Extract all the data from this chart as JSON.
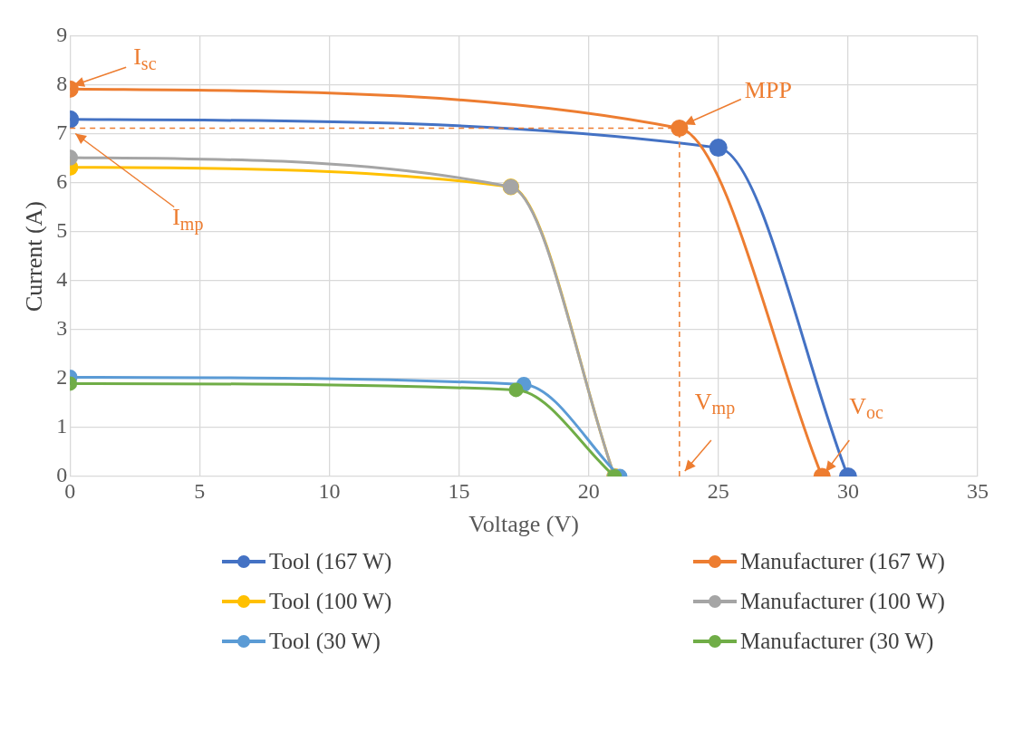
{
  "chart_data": {
    "type": "line",
    "xlabel": "Voltage (V)",
    "ylabel": "Current (A)",
    "xlim": [
      0,
      35
    ],
    "xticks": [
      0,
      5,
      10,
      15,
      20,
      25,
      30,
      35
    ],
    "ylim": [
      0,
      9
    ],
    "yticks": [
      0,
      1,
      2,
      3,
      4,
      5,
      6,
      7,
      8,
      9
    ],
    "grid": true,
    "legend": "bottom",
    "marker": "circle",
    "series": [
      {
        "name": "Tool (167 W)",
        "color": "#4472c4",
        "x": [
          0,
          25,
          30
        ],
        "values": [
          7.3,
          6.72,
          0
        ]
      },
      {
        "name": "Manufacturer (167 W)",
        "color": "#ed7d31",
        "x": [
          0,
          23.5,
          29
        ],
        "values": [
          7.92,
          7.12,
          0
        ]
      },
      {
        "name": "Tool (100 W)",
        "color": "#ffc000",
        "x": [
          0,
          17,
          21
        ],
        "values": [
          6.32,
          5.92,
          0
        ]
      },
      {
        "name": "Manufacturer (100 W)",
        "color": "#a5a5a5",
        "x": [
          0,
          17,
          21
        ],
        "values": [
          6.52,
          5.92,
          0
        ]
      },
      {
        "name": "Tool (30 W)",
        "color": "#5b9bd5",
        "x": [
          0,
          17.5,
          21.2
        ],
        "values": [
          2.03,
          1.88,
          0
        ]
      },
      {
        "name": "Manufacturer (30 W)",
        "color": "#70ad47",
        "x": [
          0,
          17.2,
          21
        ],
        "values": [
          1.9,
          1.77,
          0
        ]
      },
      {
        "color": "#ed7d31",
        "x": [
          0,
          23.5
        ],
        "values": [
          7.12,
          7.12
        ],
        "line_style": "dashed",
        "marker": "none"
      },
      {
        "color": "#ed7d31",
        "x": [
          23.5,
          23.5
        ],
        "values": [
          0,
          7.12
        ],
        "line_style": "dashed",
        "marker": "none"
      }
    ],
    "annotations": [
      {
        "text": "I$_{sc}$",
        "x": 0,
        "y": 7.92
      },
      {
        "text": "MPP",
        "x": 23.5,
        "y": 7.12
      },
      {
        "text": "I$_{mp}$",
        "x": 0,
        "y": 7.12
      },
      {
        "text": "V$_{mp}$",
        "x": 23.5,
        "y": 0
      },
      {
        "text": "V$_{oc}$",
        "x": 29,
        "y": 0
      }
    ]
  }
}
